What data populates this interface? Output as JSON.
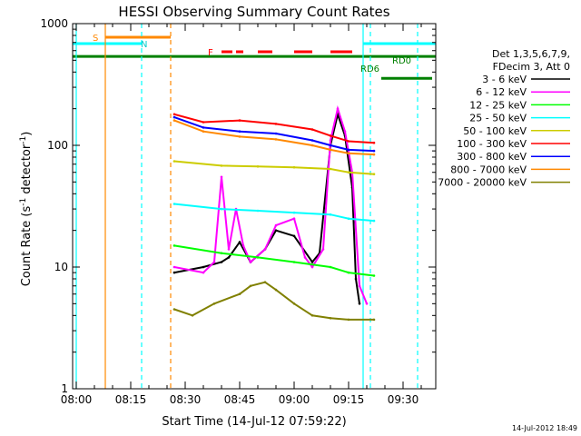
{
  "chart_data": {
    "type": "line",
    "title": "HESSI Observing Summary Count Rates",
    "xlabel": "Start Time (14-Jul-12 07:59:22)",
    "ylabel_main": "Count Rate (s",
    "ylabel_sup1": "-1",
    "ylabel_mid": " detector",
    "ylabel_sup2": "-1",
    "ylabel_end": ")",
    "y_scale": "log",
    "ylim": [
      1,
      1000
    ],
    "xlim": [
      "07:59",
      "09:39"
    ],
    "x_ticks": [
      "08:00",
      "08:15",
      "08:30",
      "08:45",
      "09:00",
      "09:15",
      "09:30"
    ],
    "y_ticks": [
      "1",
      "10",
      "100",
      "1000"
    ],
    "timestamp": "14-Jul-2012 18:49",
    "legend_header": [
      "Det 1,3,5,6,7,9,",
      "FDecim 3, Att 0"
    ],
    "legend_position": "right",
    "series": [
      {
        "name": "3 - 6 keV",
        "color": "#000000",
        "x": [
          "08:27",
          "08:35",
          "08:40",
          "08:42",
          "08:45",
          "08:48",
          "08:52",
          "08:55",
          "09:00",
          "09:05",
          "09:07",
          "09:10",
          "09:12",
          "09:14",
          "09:16",
          "09:17",
          "09:18"
        ],
        "y": [
          9,
          10,
          11,
          12,
          16,
          11,
          14,
          20,
          18,
          11,
          13,
          100,
          180,
          120,
          45,
          8,
          5
        ]
      },
      {
        "name": "6 - 12 keV",
        "color": "#ff00ff",
        "x": [
          "08:27",
          "08:35",
          "08:38",
          "08:40",
          "08:42",
          "08:44",
          "08:46",
          "08:48",
          "08:52",
          "08:55",
          "09:00",
          "09:03",
          "09:05",
          "09:08",
          "09:10",
          "09:12",
          "09:14",
          "09:16",
          "09:18",
          "09:20"
        ],
        "y": [
          10,
          9,
          11,
          55,
          14,
          30,
          15,
          11,
          14,
          22,
          25,
          12,
          10,
          14,
          110,
          200,
          130,
          60,
          7,
          5
        ]
      },
      {
        "name": "12 - 25 keV",
        "color": "#00ff00",
        "x": [
          "08:27",
          "08:40",
          "08:50",
          "09:00",
          "09:10",
          "09:15",
          "09:22"
        ],
        "y": [
          15,
          13,
          12,
          11,
          10,
          9,
          8.5
        ]
      },
      {
        "name": "25 - 50 keV",
        "color": "#00ffff",
        "x": [
          "08:27",
          "08:40",
          "08:50",
          "09:00",
          "09:10",
          "09:15",
          "09:22"
        ],
        "y": [
          33,
          30,
          29,
          28,
          27,
          25,
          24
        ]
      },
      {
        "name": "50 - 100 keV",
        "color": "#cccc00",
        "x": [
          "08:27",
          "08:40",
          "08:50",
          "09:00",
          "09:10",
          "09:15",
          "09:22"
        ],
        "y": [
          74,
          68,
          67,
          66,
          64,
          60,
          58
        ]
      },
      {
        "name": "100 - 300 keV",
        "color": "#ff0000",
        "x": [
          "08:27",
          "08:35",
          "08:45",
          "08:55",
          "09:05",
          "09:10",
          "09:15",
          "09:22"
        ],
        "y": [
          180,
          155,
          160,
          150,
          135,
          120,
          108,
          105
        ]
      },
      {
        "name": "300 - 800 keV",
        "color": "#0000ff",
        "x": [
          "08:27",
          "08:35",
          "08:45",
          "08:55",
          "09:05",
          "09:10",
          "09:15",
          "09:22"
        ],
        "y": [
          170,
          140,
          130,
          125,
          110,
          100,
          92,
          90
        ]
      },
      {
        "name": "800 - 7000 keV",
        "color": "#ff8800",
        "x": [
          "08:27",
          "08:35",
          "08:45",
          "08:55",
          "09:05",
          "09:10",
          "09:15",
          "09:22"
        ],
        "y": [
          160,
          130,
          118,
          112,
          100,
          92,
          86,
          84
        ]
      },
      {
        "name": "7000 - 20000 keV",
        "color": "#808000",
        "x": [
          "08:27",
          "08:32",
          "08:38",
          "08:45",
          "08:48",
          "08:52",
          "08:55",
          "09:00",
          "09:05",
          "09:10",
          "09:15",
          "09:22"
        ],
        "y": [
          4.5,
          4,
          5,
          6,
          7,
          7.5,
          6.5,
          5,
          4,
          3.8,
          3.7,
          3.7
        ]
      }
    ],
    "annotations": {
      "saa_label": "S",
      "night_label": "N",
      "flare_label": "F",
      "rd0_label": "RD0",
      "rd6_label": "RD6"
    },
    "vertical_markers": [
      {
        "x": "08:00",
        "color": "#00ffff",
        "style": "solid"
      },
      {
        "x": "08:08",
        "color": "#ff8800",
        "style": "solid"
      },
      {
        "x": "08:18",
        "color": "#00ffff",
        "style": "dashed"
      },
      {
        "x": "08:26",
        "color": "#ff8800",
        "style": "dashed"
      },
      {
        "x": "09:19",
        "color": "#00ffff",
        "style": "solid"
      },
      {
        "x": "09:21",
        "color": "#00ffff",
        "style": "dashed"
      },
      {
        "x": "09:34",
        "color": "#00ffff",
        "style": "dashed"
      }
    ],
    "state_bars": {
      "saa": {
        "color": "#ff8800",
        "start": "08:08",
        "end": "08:26"
      },
      "night": [
        {
          "color": "#00ffff",
          "start": "07:59",
          "end": "08:18"
        },
        {
          "color": "#00ffff",
          "start": "09:19",
          "end": "09:39"
        }
      ],
      "flare": [
        {
          "color": "#ff0000",
          "start": "08:40",
          "end": "08:43"
        },
        {
          "color": "#ff0000",
          "start": "08:44",
          "end": "08:46"
        },
        {
          "color": "#ff0000",
          "start": "08:50",
          "end": "08:54"
        },
        {
          "color": "#ff0000",
          "start": "09:00",
          "end": "09:05"
        },
        {
          "color": "#ff0000",
          "start": "09:10",
          "end": "09:16"
        }
      ],
      "decimation": [
        {
          "color": "#008000",
          "start": "07:59",
          "end": "09:39",
          "level": 0.91
        },
        {
          "color": "#008000",
          "start": "09:24",
          "end": "09:38",
          "level": 0.85
        }
      ]
    }
  }
}
